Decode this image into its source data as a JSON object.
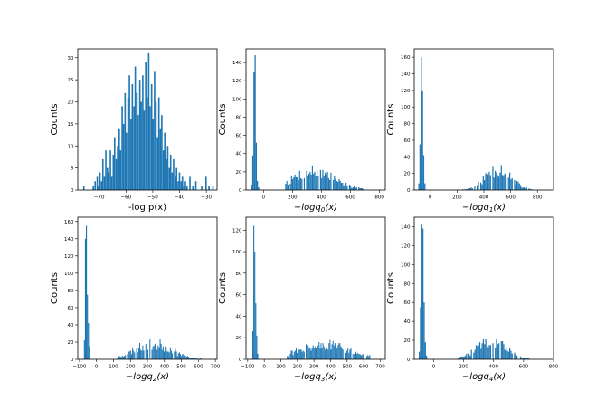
{
  "chart_data": [
    {
      "type": "bar",
      "title": "",
      "xlabel": "-log p(x)",
      "xlabel_math": false,
      "ylabel": "Counts",
      "xlim": [
        -78,
        -26
      ],
      "ylim": [
        0,
        32
      ],
      "xticks": [
        -70,
        -60,
        -50,
        -40,
        -30
      ],
      "yticks": [
        0,
        5,
        10,
        15,
        20,
        25,
        30
      ],
      "bins": [
        {
          "x": -76.0,
          "w": 0.55,
          "h": 1
        },
        {
          "x": -72.5,
          "w": 0.55,
          "h": 1
        },
        {
          "x": -71.8,
          "w": 0.55,
          "h": 2
        },
        {
          "x": -71.0,
          "w": 0.55,
          "h": 3
        },
        {
          "x": -70.5,
          "w": 0.55,
          "h": 1
        },
        {
          "x": -70.0,
          "w": 0.55,
          "h": 4
        },
        {
          "x": -69.4,
          "w": 0.55,
          "h": 2
        },
        {
          "x": -68.9,
          "w": 0.55,
          "h": 7
        },
        {
          "x": -68.3,
          "w": 0.55,
          "h": 3
        },
        {
          "x": -67.8,
          "w": 0.55,
          "h": 9
        },
        {
          "x": -67.2,
          "w": 0.55,
          "h": 5
        },
        {
          "x": -66.7,
          "w": 0.55,
          "h": 4
        },
        {
          "x": -66.1,
          "w": 0.55,
          "h": 9
        },
        {
          "x": -65.6,
          "w": 0.55,
          "h": 3
        },
        {
          "x": -65.0,
          "w": 0.55,
          "h": 8
        },
        {
          "x": -64.5,
          "w": 0.55,
          "h": 12
        },
        {
          "x": -63.9,
          "w": 0.55,
          "h": 7
        },
        {
          "x": -63.4,
          "w": 0.55,
          "h": 10
        },
        {
          "x": -62.8,
          "w": 0.55,
          "h": 14
        },
        {
          "x": -62.3,
          "w": 0.55,
          "h": 9
        },
        {
          "x": -61.7,
          "w": 0.55,
          "h": 19
        },
        {
          "x": -61.2,
          "w": 0.55,
          "h": 15
        },
        {
          "x": -60.6,
          "w": 0.55,
          "h": 22
        },
        {
          "x": -60.1,
          "w": 0.55,
          "h": 13
        },
        {
          "x": -59.5,
          "w": 0.55,
          "h": 21
        },
        {
          "x": -59.0,
          "w": 0.55,
          "h": 26
        },
        {
          "x": -58.4,
          "w": 0.55,
          "h": 16
        },
        {
          "x": -57.9,
          "w": 0.55,
          "h": 24
        },
        {
          "x": -57.3,
          "w": 0.55,
          "h": 19
        },
        {
          "x": -56.8,
          "w": 0.55,
          "h": 28
        },
        {
          "x": -56.2,
          "w": 0.55,
          "h": 22
        },
        {
          "x": -55.7,
          "w": 0.55,
          "h": 17
        },
        {
          "x": -55.1,
          "w": 0.55,
          "h": 25
        },
        {
          "x": -54.6,
          "w": 0.55,
          "h": 20
        },
        {
          "x": -54.0,
          "w": 0.55,
          "h": 26
        },
        {
          "x": -53.5,
          "w": 0.55,
          "h": 18
        },
        {
          "x": -52.9,
          "w": 0.55,
          "h": 29
        },
        {
          "x": -52.4,
          "w": 0.55,
          "h": 21
        },
        {
          "x": -51.8,
          "w": 0.55,
          "h": 31
        },
        {
          "x": -51.3,
          "w": 0.55,
          "h": 19
        },
        {
          "x": -50.7,
          "w": 0.55,
          "h": 24
        },
        {
          "x": -50.2,
          "w": 0.55,
          "h": 16
        },
        {
          "x": -49.6,
          "w": 0.55,
          "h": 27
        },
        {
          "x": -49.1,
          "w": 0.55,
          "h": 20
        },
        {
          "x": -48.5,
          "w": 0.55,
          "h": 12
        },
        {
          "x": -48.0,
          "w": 0.55,
          "h": 21
        },
        {
          "x": -47.4,
          "w": 0.55,
          "h": 14
        },
        {
          "x": -46.9,
          "w": 0.55,
          "h": 17
        },
        {
          "x": -46.3,
          "w": 0.55,
          "h": 9
        },
        {
          "x": -45.8,
          "w": 0.55,
          "h": 13
        },
        {
          "x": -45.2,
          "w": 0.55,
          "h": 7
        },
        {
          "x": -44.7,
          "w": 0.55,
          "h": 10
        },
        {
          "x": -44.1,
          "w": 0.55,
          "h": 5
        },
        {
          "x": -43.6,
          "w": 0.55,
          "h": 8
        },
        {
          "x": -43.0,
          "w": 0.55,
          "h": 4
        },
        {
          "x": -42.5,
          "w": 0.55,
          "h": 7
        },
        {
          "x": -41.9,
          "w": 0.55,
          "h": 3
        },
        {
          "x": -41.4,
          "w": 0.55,
          "h": 5
        },
        {
          "x": -40.8,
          "w": 0.55,
          "h": 2
        },
        {
          "x": -40.3,
          "w": 0.55,
          "h": 4
        },
        {
          "x": -39.7,
          "w": 0.55,
          "h": 2
        },
        {
          "x": -39.2,
          "w": 0.55,
          "h": 3
        },
        {
          "x": -38.6,
          "w": 0.55,
          "h": 1
        },
        {
          "x": -38.1,
          "w": 0.55,
          "h": 2
        },
        {
          "x": -37.5,
          "w": 0.55,
          "h": 1
        },
        {
          "x": -36.4,
          "w": 0.55,
          "h": 3
        },
        {
          "x": -35.3,
          "w": 0.55,
          "h": 1
        },
        {
          "x": -34.2,
          "w": 0.55,
          "h": 2
        },
        {
          "x": -32.0,
          "w": 0.55,
          "h": 1
        },
        {
          "x": -30.4,
          "w": 0.55,
          "h": 3
        },
        {
          "x": -29.3,
          "w": 0.55,
          "h": 1
        },
        {
          "x": -27.8,
          "w": 0.55,
          "h": 1
        }
      ]
    },
    {
      "type": "bar",
      "title": "",
      "xlabel": "−logq",
      "xlabel_sub": "0",
      "xlabel_suffix": "(x)",
      "xlabel_math": true,
      "ylabel": "Counts",
      "xlim": [
        -120,
        840
      ],
      "ylim": [
        0,
        155
      ],
      "xticks": [
        0,
        200,
        400,
        600,
        800
      ],
      "yticks": [
        0,
        20,
        40,
        60,
        80,
        100,
        120,
        140
      ],
      "spikes": [
        {
          "x": -85,
          "w": 8,
          "h": 6
        },
        {
          "x": -77,
          "w": 8,
          "h": 38
        },
        {
          "x": -69,
          "w": 8,
          "h": 130
        },
        {
          "x": -61,
          "w": 8,
          "h": 148
        },
        {
          "x": -53,
          "w": 8,
          "h": 52
        },
        {
          "x": -45,
          "w": 8,
          "h": 10
        },
        {
          "x": -37,
          "w": 8,
          "h": 3
        }
      ],
      "mound": {
        "start": 150,
        "end": 700,
        "width": 8,
        "center": 340,
        "spread": 145,
        "peak": 22,
        "seed": 7
      }
    },
    {
      "type": "bar",
      "title": "",
      "xlabel": "−logq",
      "xlabel_sub": "1",
      "xlabel_suffix": "(x)",
      "xlabel_math": true,
      "ylabel": "Counts",
      "xlim": [
        -120,
        920
      ],
      "ylim": [
        0,
        170
      ],
      "xticks": [
        0,
        200,
        400,
        600,
        800
      ],
      "yticks": [
        0,
        20,
        40,
        60,
        80,
        100,
        120,
        140,
        160
      ],
      "spikes": [
        {
          "x": -90,
          "w": 9,
          "h": 8
        },
        {
          "x": -81,
          "w": 9,
          "h": 55
        },
        {
          "x": -72,
          "w": 9,
          "h": 160
        },
        {
          "x": -63,
          "w": 9,
          "h": 120
        },
        {
          "x": -54,
          "w": 9,
          "h": 42
        },
        {
          "x": -45,
          "w": 9,
          "h": 8
        }
      ],
      "mound": {
        "start": 220,
        "end": 870,
        "width": 9,
        "center": 500,
        "spread": 95,
        "peak": 28,
        "seed": 11
      }
    },
    {
      "type": "bar",
      "title": "",
      "xlabel": "−logq",
      "xlabel_sub": "2",
      "xlabel_suffix": "(x)",
      "xlabel_math": true,
      "ylabel": "Counts",
      "xlim": [
        -110,
        710
      ],
      "ylim": [
        0,
        165
      ],
      "xticks": [
        -100,
        0,
        100,
        200,
        300,
        400,
        500,
        600,
        700
      ],
      "yticks": [
        0,
        20,
        40,
        60,
        80,
        100,
        120,
        140,
        160
      ],
      "spikes": [
        {
          "x": -74,
          "w": 6,
          "h": 22
        },
        {
          "x": -68,
          "w": 6,
          "h": 140
        },
        {
          "x": -62,
          "w": 6,
          "h": 155
        },
        {
          "x": -56,
          "w": 6,
          "h": 75
        },
        {
          "x": -50,
          "w": 6,
          "h": 42
        },
        {
          "x": -44,
          "w": 6,
          "h": 15
        }
      ],
      "mound": {
        "start": 120,
        "end": 630,
        "width": 6,
        "center": 330,
        "spread": 110,
        "peak": 19,
        "seed": 23
      }
    },
    {
      "type": "bar",
      "title": "",
      "xlabel": "−logq",
      "xlabel_sub": "3",
      "xlabel_suffix": "(x)",
      "xlabel_math": true,
      "ylabel": "Counts",
      "xlim": [
        -110,
        730
      ],
      "ylim": [
        0,
        132
      ],
      "xticks": [
        -100,
        0,
        100,
        200,
        300,
        400,
        500,
        600,
        700
      ],
      "yticks": [
        0,
        20,
        40,
        60,
        80,
        100,
        120
      ],
      "spikes": [
        {
          "x": -72,
          "w": 6,
          "h": 26
        },
        {
          "x": -66,
          "w": 6,
          "h": 124
        },
        {
          "x": -60,
          "w": 6,
          "h": 100
        },
        {
          "x": -54,
          "w": 6,
          "h": 52
        },
        {
          "x": -48,
          "w": 6,
          "h": 22
        },
        {
          "x": -42,
          "w": 6,
          "h": 5
        }
      ],
      "mound": {
        "start": 130,
        "end": 640,
        "width": 6,
        "center": 360,
        "spread": 160,
        "peak": 14,
        "seed": 31
      }
    },
    {
      "type": "bar",
      "title": "",
      "xlabel": "−logq",
      "xlabel_sub": "4",
      "xlabel_suffix": "(x)",
      "xlabel_math": true,
      "ylabel": "Counts",
      "xlim": [
        -130,
        800
      ],
      "ylim": [
        0,
        150
      ],
      "xticks": [
        0,
        200,
        400,
        600,
        800
      ],
      "yticks": [
        0,
        20,
        40,
        60,
        80,
        100,
        120,
        140
      ],
      "spikes": [
        {
          "x": -100,
          "w": 8,
          "h": 8
        },
        {
          "x": -92,
          "w": 8,
          "h": 55
        },
        {
          "x": -84,
          "w": 8,
          "h": 142
        },
        {
          "x": -76,
          "w": 8,
          "h": 138
        },
        {
          "x": -68,
          "w": 8,
          "h": 60
        },
        {
          "x": -60,
          "w": 8,
          "h": 18
        },
        {
          "x": -52,
          "w": 8,
          "h": 4
        }
      ],
      "mound": {
        "start": 160,
        "end": 700,
        "width": 8,
        "center": 380,
        "spread": 100,
        "peak": 20,
        "seed": 47
      }
    }
  ]
}
